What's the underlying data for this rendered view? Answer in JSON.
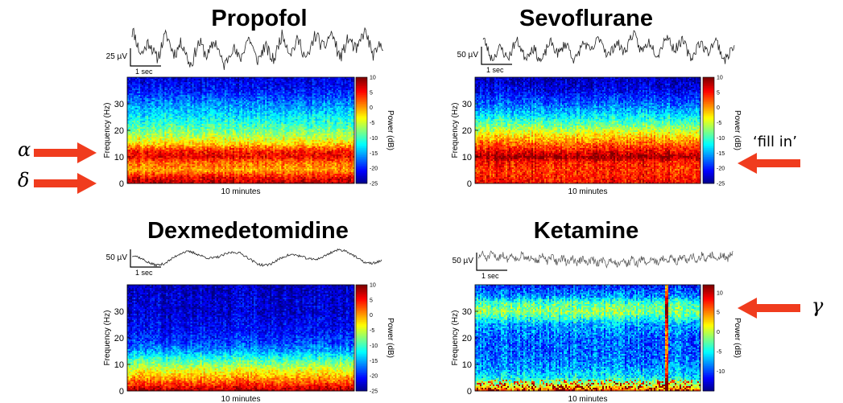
{
  "chart_data": [
    {
      "type": "heatmap",
      "title": "Propofol",
      "trace_scale": "25 µV",
      "trace_time": "1 sec",
      "xlabel": "10 minutes",
      "ylabel": "Frequency (Hz)",
      "yticks": [
        0,
        10,
        20,
        30
      ],
      "ylim": [
        0,
        40
      ],
      "colorbar_label": "Power (dB)",
      "colorbar_ticks": [
        10,
        5,
        0,
        -5,
        -10,
        -15,
        -20,
        -25
      ],
      "colorbar_range": [
        -25,
        10
      ],
      "power_profile_hz": [
        0,
        2,
        5,
        8,
        10,
        12,
        15,
        18,
        22,
        26,
        30,
        35,
        40
      ],
      "power_profile_db": [
        8,
        6,
        0,
        2,
        6,
        5,
        -2,
        -6,
        -10,
        -13,
        -16,
        -20,
        -22
      ]
    },
    {
      "type": "heatmap",
      "title": "Sevoflurane",
      "trace_scale": "50 µV",
      "trace_time": "1 sec",
      "xlabel": "10 minutes",
      "ylabel": "Frequency (Hz)",
      "yticks": [
        0,
        10,
        20,
        30
      ],
      "ylim": [
        0,
        40
      ],
      "colorbar_label": "Power (dB)",
      "colorbar_ticks": [
        10,
        5,
        0,
        -5,
        -10,
        -15,
        -20,
        -25
      ],
      "colorbar_range": [
        -25,
        10
      ],
      "power_profile_hz": [
        0,
        2,
        5,
        8,
        10,
        12,
        15,
        18,
        22,
        26,
        30,
        35,
        40
      ],
      "power_profile_db": [
        6,
        5,
        4,
        5,
        9,
        6,
        2,
        -2,
        -8,
        -13,
        -17,
        -21,
        -23
      ]
    },
    {
      "type": "heatmap",
      "title": "Dexmedetomidine",
      "trace_scale": "50 µV",
      "trace_time": "1 sec",
      "xlabel": "10 minutes",
      "ylabel": "Frequency (Hz)",
      "yticks": [
        0,
        10,
        20,
        30
      ],
      "ylim": [
        0,
        40
      ],
      "colorbar_label": "Power (dB)",
      "colorbar_ticks": [
        10,
        5,
        0,
        -5,
        -10,
        -15,
        -20,
        -25
      ],
      "colorbar_range": [
        -25,
        10
      ],
      "power_profile_hz": [
        0,
        2,
        5,
        8,
        10,
        12,
        15,
        18,
        22,
        26,
        30,
        35,
        40
      ],
      "power_profile_db": [
        9,
        5,
        0,
        -4,
        -7,
        -10,
        -15,
        -18,
        -20,
        -21,
        -22,
        -22,
        -23
      ]
    },
    {
      "type": "heatmap",
      "title": "Ketamine",
      "trace_scale": "50 µV",
      "trace_time": "1 sec",
      "xlabel": "10 minutes",
      "ylabel": "Frequency (Hz)",
      "yticks": [
        0,
        10,
        20,
        30
      ],
      "ylim": [
        0,
        40
      ],
      "colorbar_label": "Power (dB)",
      "colorbar_ticks": [
        10,
        5,
        0,
        -5,
        -10
      ],
      "colorbar_range": [
        -15,
        12
      ],
      "power_profile_hz": [
        0,
        2,
        5,
        8,
        10,
        15,
        20,
        25,
        28,
        30,
        33,
        36,
        40
      ],
      "power_profile_db": [
        6,
        1,
        -5,
        -7,
        -8,
        -9,
        -9,
        -7,
        -3,
        -1,
        -3,
        -8,
        -11
      ]
    }
  ],
  "annotations": {
    "alpha": "α",
    "delta": "δ",
    "fill_in": "‘fill in’",
    "gamma": "γ"
  },
  "colors": {
    "arrow": "#f03c1e"
  }
}
